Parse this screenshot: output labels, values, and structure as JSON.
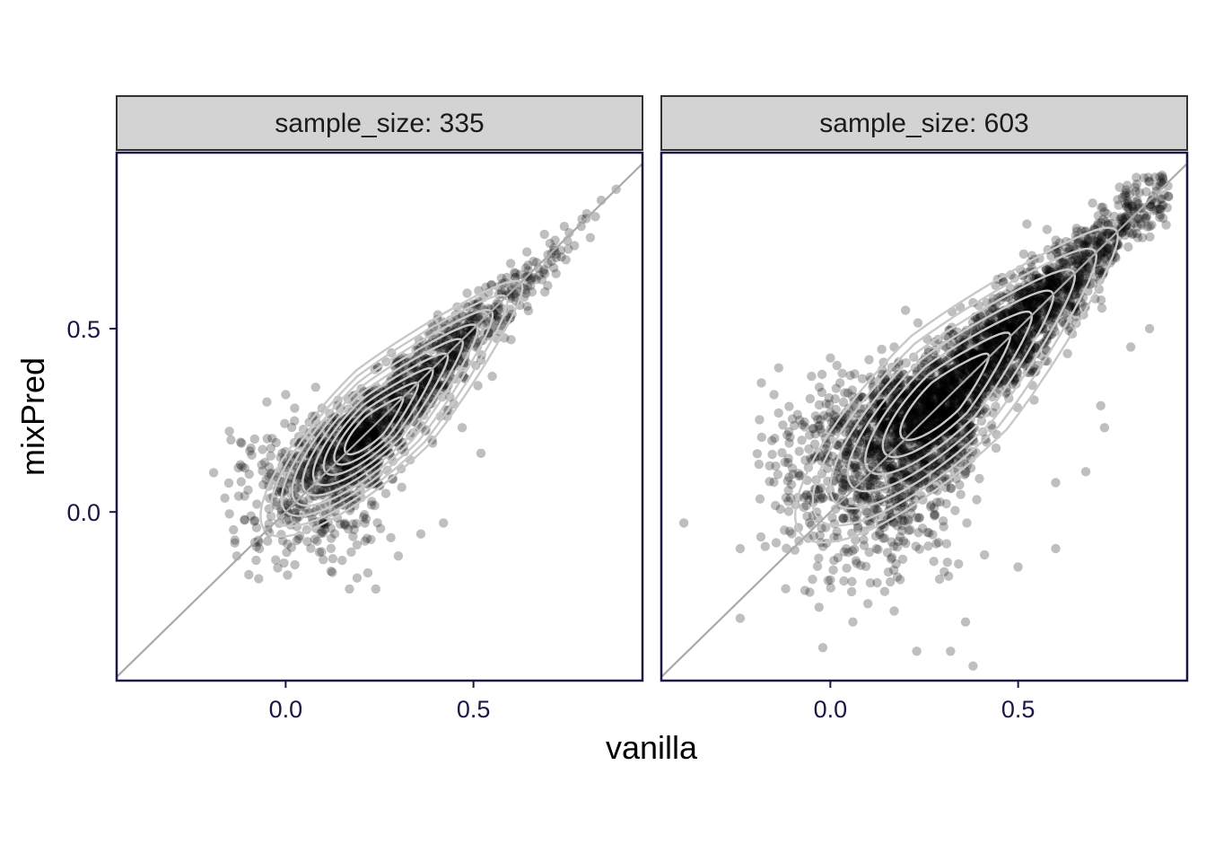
{
  "chart_data": {
    "type": "scatter",
    "xlabel": "vanilla",
    "ylabel": "mixPred",
    "xlim": [
      -0.45,
      0.95
    ],
    "ylim": [
      -0.46,
      0.98
    ],
    "x_ticks": [
      0.0,
      0.5
    ],
    "y_ticks": [
      0.0,
      0.5
    ],
    "x_tick_labels": [
      "0.0",
      "0.5"
    ],
    "y_tick_labels": [
      "0.0",
      "0.5"
    ],
    "grid": false,
    "legend": "none",
    "reference_line": "y = x",
    "point_color": "#000000",
    "point_alpha": 0.25,
    "contour_color": "#c8c8c8",
    "reference_line_color": "#aaaaaa",
    "strip_fill": "#d3d3d3",
    "panels": [
      {
        "label": "sample_size: 335",
        "n_points": 1600,
        "center": [
          0.23,
          0.23
        ],
        "corr": 0.88,
        "outliers": [
          [
            -0.15,
            0.22
          ],
          [
            -0.12,
            0.19
          ],
          [
            -0.1,
            0.06
          ],
          [
            -0.13,
            -0.12
          ],
          [
            -0.07,
            -0.1
          ],
          [
            0.03,
            -0.04
          ],
          [
            0.1,
            -0.13
          ],
          [
            0.17,
            -0.21
          ],
          [
            0.19,
            -0.18
          ],
          [
            0.24,
            -0.21
          ],
          [
            0.28,
            -0.07
          ],
          [
            0.3,
            -0.12
          ],
          [
            0.36,
            -0.06
          ],
          [
            0.42,
            -0.03
          ],
          [
            0.52,
            0.16
          ],
          [
            0.47,
            0.23
          ],
          [
            0.55,
            0.37
          ],
          [
            0.6,
            0.47
          ],
          [
            0.69,
            0.6
          ],
          [
            0.72,
            0.65
          ],
          [
            0.08,
            0.34
          ],
          [
            0.0,
            0.32
          ],
          [
            -0.05,
            0.3
          ],
          [
            0.75,
            0.74
          ],
          [
            0.88,
            0.88
          ],
          [
            0.84,
            0.85
          ],
          [
            0.8,
            0.8
          ]
        ]
      },
      {
        "label": "sample_size: 603",
        "n_points": 3500,
        "center": [
          0.3,
          0.31
        ],
        "corr": 0.9,
        "outliers": [
          [
            -0.39,
            -0.03
          ],
          [
            -0.24,
            -0.1
          ],
          [
            -0.24,
            -0.29
          ],
          [
            -0.19,
            0.13
          ],
          [
            -0.15,
            0.32
          ],
          [
            -0.03,
            -0.26
          ],
          [
            -0.02,
            -0.37
          ],
          [
            0.06,
            -0.3
          ],
          [
            0.1,
            -0.25
          ],
          [
            0.17,
            -0.27
          ],
          [
            0.23,
            -0.38
          ],
          [
            0.32,
            -0.38
          ],
          [
            0.38,
            -0.42
          ],
          [
            0.36,
            -0.3
          ],
          [
            0.5,
            -0.15
          ],
          [
            0.6,
            -0.1
          ],
          [
            0.6,
            0.08
          ],
          [
            0.68,
            0.11
          ],
          [
            0.73,
            0.23
          ],
          [
            0.72,
            0.29
          ],
          [
            0.8,
            0.45
          ],
          [
            0.85,
            0.5
          ],
          [
            0.0,
            0.42
          ],
          [
            -0.05,
            0.37
          ],
          [
            0.17,
            0.45
          ],
          [
            0.88,
            0.9
          ],
          [
            0.9,
            0.86
          ],
          [
            0.2,
            0.55
          ]
        ]
      }
    ]
  }
}
